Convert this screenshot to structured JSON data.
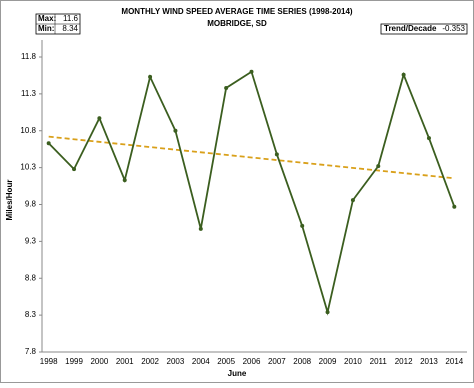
{
  "chart_data": {
    "type": "line",
    "title": "MONTHLY WIND SPEED AVERAGE TIME SERIES (1998-2014)",
    "subtitle": "MOBRIDGE, SD",
    "x_label": "June",
    "y_label": "Miles/Hour",
    "stats": {
      "max_label": "Max:",
      "max": 11.6,
      "min_label": "Min:",
      "min": 8.34,
      "trend_label": "Trend/Decade",
      "trend": -0.353
    },
    "categories": [
      "1998",
      "1999",
      "2000",
      "2001",
      "2002",
      "2003",
      "2004",
      "2005",
      "2006",
      "2007",
      "2008",
      "2009",
      "2010",
      "2011",
      "2012",
      "2013",
      "2014"
    ],
    "values": [
      10.63,
      10.28,
      10.97,
      10.13,
      11.53,
      10.8,
      9.47,
      11.38,
      11.6,
      10.48,
      9.51,
      8.34,
      9.86,
      10.32,
      11.56,
      10.7,
      9.77
    ],
    "color": "#3b5e1f",
    "trend_line": {
      "start": 10.72,
      "end": 10.155,
      "color": "#d9a01a"
    },
    "ylim": [
      7.8,
      11.8
    ],
    "yticks": [
      7.8,
      8.3,
      8.8,
      9.3,
      9.8,
      10.3,
      10.8,
      11.3,
      11.8
    ]
  }
}
